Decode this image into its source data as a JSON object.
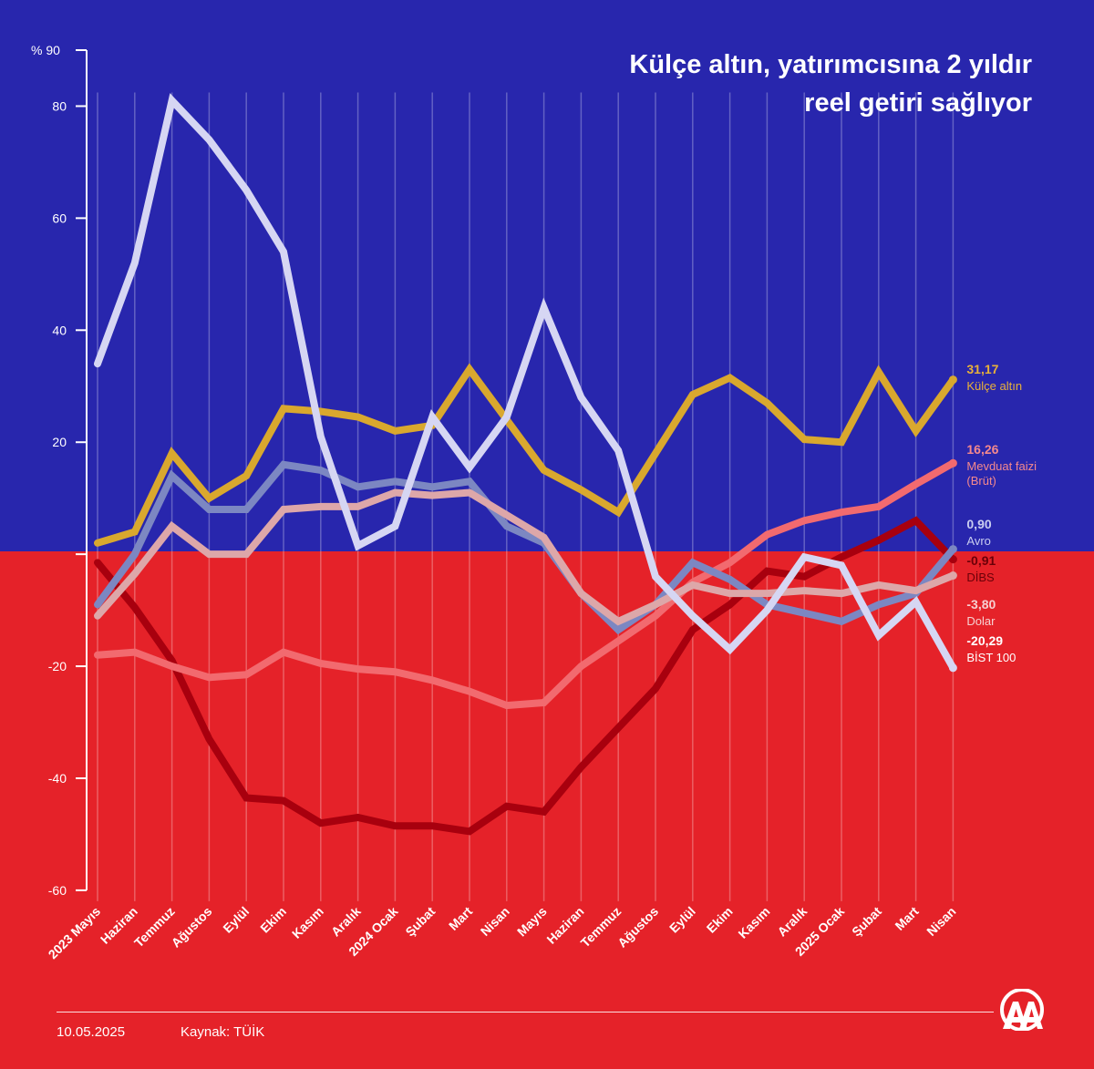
{
  "title_line1": "Külçe altın, yatırımcısına 2 yıldır",
  "title_line2": "reel getiri sağlıyor",
  "date": "10.05.2025",
  "source": "Kaynak: TÜİK",
  "colors": {
    "background_top": "#2826ad",
    "background_bottom": "#e52229",
    "axis": "#ffffff"
  },
  "chart_data": {
    "type": "line",
    "y_unit_label": "% 90",
    "yticks": [
      "80",
      "60",
      "40",
      "20",
      "-20",
      "-40",
      "-60"
    ],
    "yticks_values": [
      80,
      60,
      40,
      20,
      -20,
      -40,
      -60
    ],
    "ylim": [
      -60,
      90
    ],
    "grid": "vertical lines at each month",
    "categories": [
      "2023 Mayıs",
      "Haziran",
      "Temmuz",
      "Ağustos",
      "Eylül",
      "Ekim",
      "Kasım",
      "Aralık",
      "2024 Ocak",
      "Şubat",
      "Mart",
      "Nisan",
      "Mayıs",
      "Haziran",
      "Temmuz",
      "Ağustos",
      "Eylül",
      "Ekim",
      "Kasım",
      "Aralık",
      "2025 Ocak",
      "Şubat",
      "Mart",
      "Nisan"
    ],
    "series": [
      {
        "name": "Külçe altın",
        "value_label": "31,17",
        "color": "#d9a82e",
        "label_color": "#e8b13a",
        "values": [
          2,
          4,
          18,
          10,
          14,
          26,
          25.5,
          24.5,
          22,
          23,
          33,
          24,
          15,
          11.5,
          7.5,
          18,
          28.5,
          31.5,
          27,
          20.5,
          20,
          32.5,
          22,
          31.17
        ]
      },
      {
        "name": "Mevduat faizi (Brüt)",
        "value_label": "16,26",
        "color": "#f26a6f",
        "label_color": "#f4898d",
        "values": [
          -18,
          -17.5,
          -20,
          -22,
          -21.5,
          -17.5,
          -19.5,
          -20.5,
          -21,
          -22.5,
          -24.5,
          -27,
          -26.5,
          -20,
          -15.5,
          -11,
          -5,
          -1.5,
          3.5,
          6,
          7.5,
          8.5,
          12.5,
          16.26
        ]
      },
      {
        "name": "Avro",
        "value_label": "0,90",
        "color": "#7c87c2",
        "label_color": "#c9cdf0",
        "values": [
          -9,
          0,
          14,
          8,
          8,
          16,
          15,
          12,
          13,
          12,
          13,
          5,
          2,
          -7,
          -13.5,
          -9,
          -1.5,
          -4.5,
          -9,
          -10.5,
          -12,
          -9,
          -7,
          0.9
        ]
      },
      {
        "name": "DİBS",
        "value_label": "-0,91",
        "color": "#a8000e",
        "label_color": "#6b0008",
        "values": [
          -1.5,
          -9.5,
          -19,
          -33,
          -43.5,
          -44,
          -48,
          -47,
          -48.5,
          -48.5,
          -49.5,
          -45,
          -46,
          -38,
          -31,
          -24,
          -13.5,
          -9,
          -3,
          -4,
          -0.5,
          2.5,
          6,
          -0.91
        ]
      },
      {
        "name": "Dolar",
        "value_label": "-3,80",
        "color": "#dda7a9",
        "label_color": "#f6d0d1",
        "values": [
          -11,
          -3.5,
          5,
          0,
          0,
          8,
          8.5,
          8.5,
          11,
          10.5,
          11,
          7,
          3,
          -7,
          -12,
          -9,
          -5.5,
          -7,
          -7,
          -6.5,
          -7,
          -5.5,
          -6.5,
          -3.8
        ]
      },
      {
        "name": "BİST 100",
        "value_label": "-20,29",
        "color": "#d6d6f3",
        "label_color": "#ffffff",
        "values": [
          34,
          52,
          81,
          74,
          65,
          54,
          21,
          1.5,
          5,
          24.5,
          15.5,
          24.5,
          44,
          28,
          18.5,
          -4,
          -11,
          -17,
          -10,
          -0.5,
          -2,
          -14.5,
          -8.5,
          -20.29
        ]
      }
    ]
  }
}
